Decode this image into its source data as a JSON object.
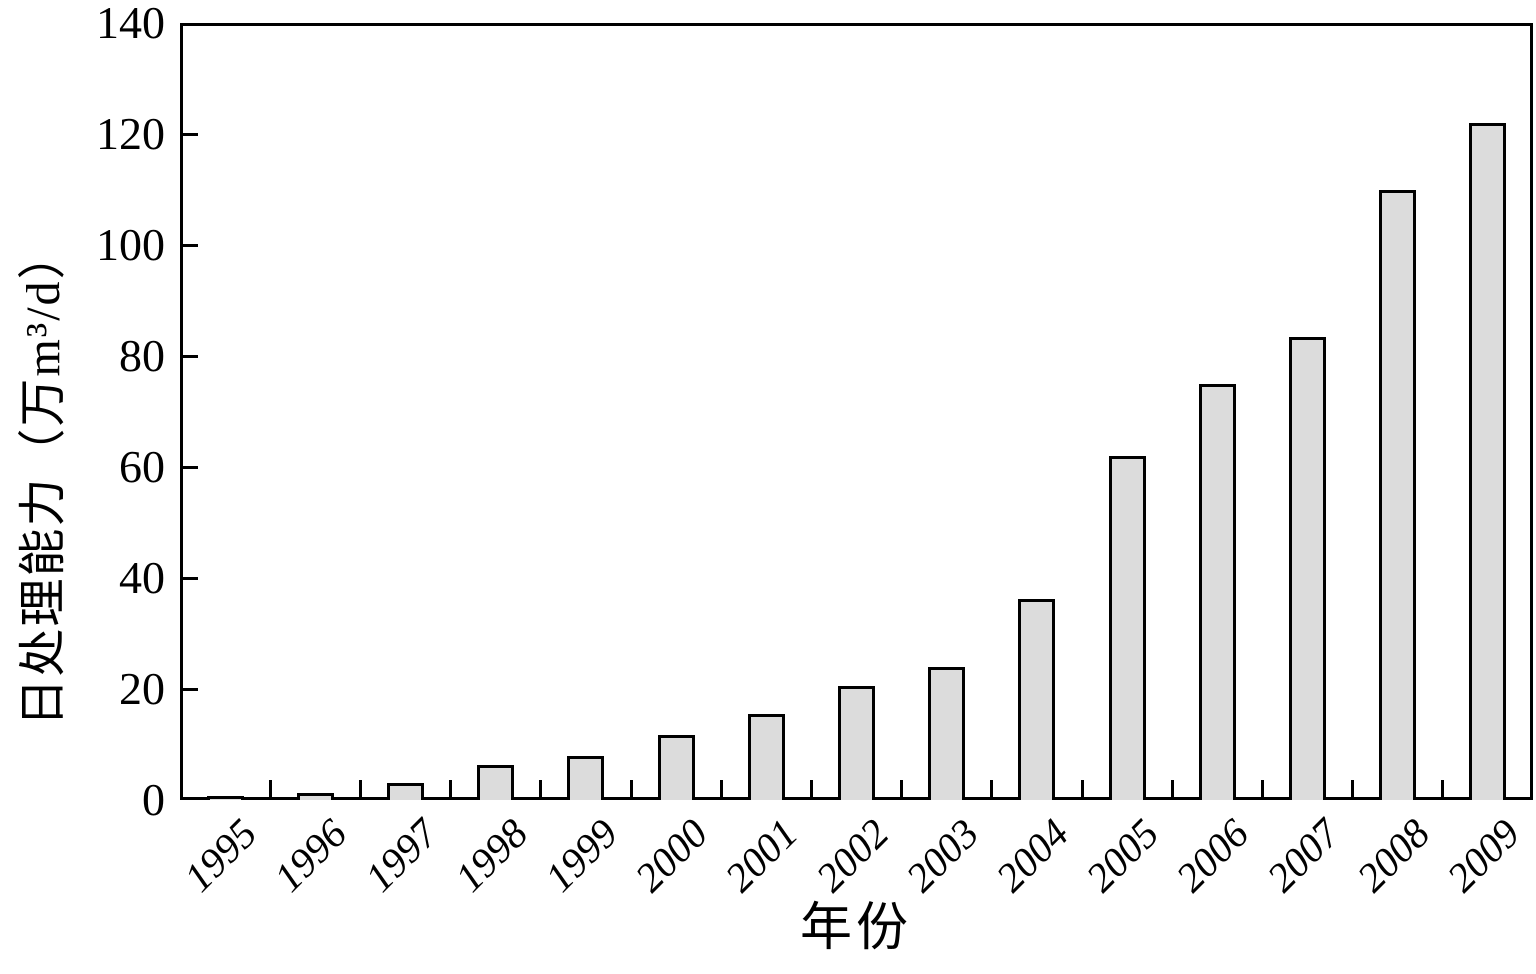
{
  "chart_data": {
    "type": "bar",
    "title": "",
    "xlabel": "年份",
    "ylabel": "日处理能力（万m³/d）",
    "categories": [
      "1995",
      "1996",
      "1997",
      "1998",
      "1999",
      "2000",
      "2001",
      "2002",
      "2003",
      "2004",
      "2005",
      "2006",
      "2007",
      "2008",
      "2009"
    ],
    "values": [
      0.8,
      1.2,
      3,
      6.3,
      8,
      11.8,
      15.5,
      20.5,
      24,
      36.3,
      62,
      75,
      83.5,
      110,
      122
    ],
    "ylim": [
      0,
      140
    ],
    "yticks": [
      0,
      20,
      40,
      60,
      80,
      100,
      120,
      140
    ],
    "grid": false,
    "legend": null,
    "bar_fill_color": "#dcdcdc",
    "bar_border_color": "#000000",
    "axis_color": "#000000",
    "background_color": "#ffffff"
  }
}
